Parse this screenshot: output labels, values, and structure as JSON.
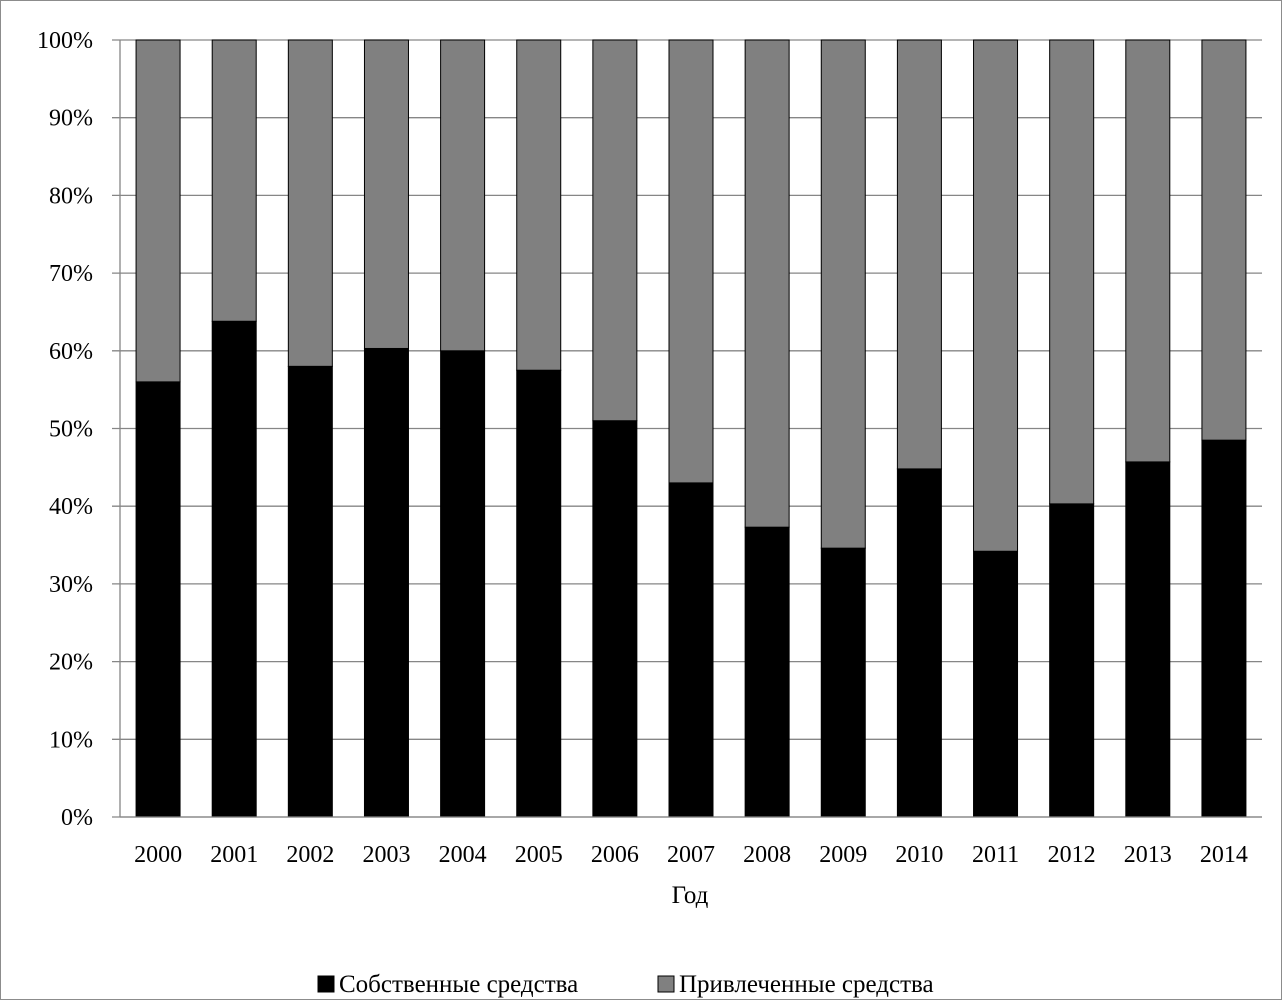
{
  "chart_data": {
    "type": "bar",
    "stacked": true,
    "categories": [
      "2000",
      "2001",
      "2002",
      "2003",
      "2004",
      "2005",
      "2006",
      "2007",
      "2008",
      "2009",
      "2010",
      "2011",
      "2012",
      "2013",
      "2014"
    ],
    "series": [
      {
        "name": "Собственные средства",
        "color": "#000000",
        "values": [
          56,
          63.8,
          58,
          60.3,
          60,
          57.5,
          51,
          43,
          37.3,
          34.6,
          44.8,
          34.2,
          40.3,
          45.7,
          48.5
        ]
      },
      {
        "name": "Привлеченные средства",
        "color": "#808080",
        "values": [
          44,
          36.2,
          42,
          39.7,
          40,
          42.5,
          49,
          57,
          62.7,
          65.4,
          55.2,
          65.8,
          59.7,
          54.3,
          51.5
        ]
      }
    ],
    "xlabel": "Год",
    "ylabel": "",
    "ylim": [
      0,
      100
    ],
    "yticks": [
      "0%",
      "10%",
      "20%",
      "30%",
      "40%",
      "50%",
      "60%",
      "70%",
      "80%",
      "90%",
      "100%"
    ],
    "grid": true,
    "legend": "bottom"
  }
}
